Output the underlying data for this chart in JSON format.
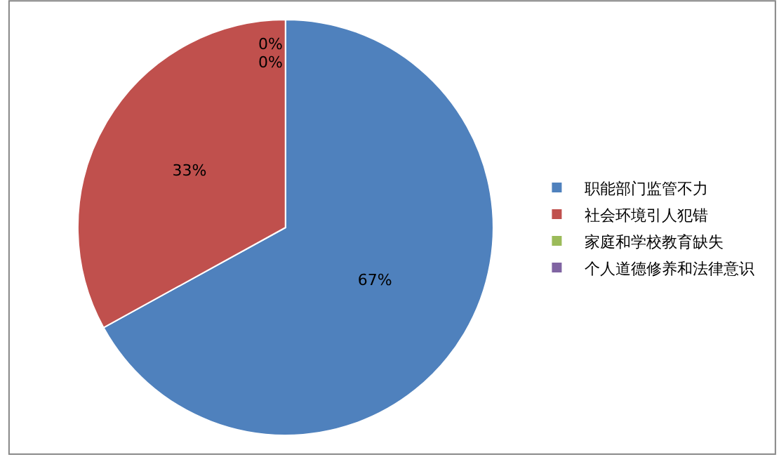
{
  "chart_data": {
    "type": "pie",
    "categories": [
      "职能部门监管不力",
      "社会环境引人犯错",
      "家庭和学校教育缺失",
      "个人道德修养和法律意识"
    ],
    "values": [
      67,
      33,
      0,
      0
    ],
    "colors": [
      "#4f81bd",
      "#c0504d",
      "#9bbb59",
      "#8064a2"
    ],
    "value_labels": [
      "67%",
      "33%",
      "0%",
      "0%"
    ],
    "legend": "right"
  }
}
